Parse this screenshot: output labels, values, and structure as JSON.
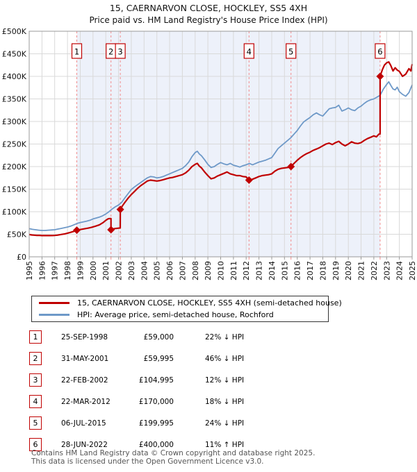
{
  "header": {
    "title": "15, CAERNARVON CLOSE, HOCKLEY, SS5 4XH",
    "subtitle": "Price paid vs. HM Land Registry's House Price Index (HPI)"
  },
  "colors": {
    "property_line": "#c00000",
    "hpi_line": "#6e99c8",
    "sale_dashed_line": "#f28b8b",
    "ownership_band": "#edf1fa",
    "grid": "#d9d9d9",
    "axis_border": "#999999"
  },
  "chart_data": {
    "type": "line",
    "title": "15, CAERNARVON CLOSE, HOCKLEY, SS5 4XH — Price paid vs. HM Land Registry's House Price Index (HPI)",
    "xlabel": "",
    "ylabel": "",
    "x_range": [
      1995,
      2025
    ],
    "ylim": [
      0,
      500000
    ],
    "grid": true,
    "legend_position": "below",
    "x_ticks": [
      1995,
      1996,
      1997,
      1998,
      1999,
      2000,
      2001,
      2002,
      2003,
      2004,
      2005,
      2006,
      2007,
      2008,
      2009,
      2010,
      2011,
      2012,
      2013,
      2014,
      2015,
      2016,
      2017,
      2018,
      2019,
      2020,
      2021,
      2022,
      2023,
      2024,
      2025
    ],
    "y_ticks": [
      {
        "value": 0,
        "label": "£0"
      },
      {
        "value": 50,
        "label": "£50K"
      },
      {
        "value": 100,
        "label": "£100K"
      },
      {
        "value": 150,
        "label": "£150K"
      },
      {
        "value": 200,
        "label": "£200K"
      },
      {
        "value": 250,
        "label": "£250K"
      },
      {
        "value": 300,
        "label": "£300K"
      },
      {
        "value": 350,
        "label": "£350K"
      },
      {
        "value": 400,
        "label": "£400K"
      },
      {
        "value": 450,
        "label": "£450K"
      },
      {
        "value": 500,
        "label": "£500K"
      }
    ],
    "ownership_band": {
      "from_year": 1998.73,
      "to_year": 2022.49
    },
    "series": [
      {
        "name": "15, CAERNARVON CLOSE, HOCKLEY, SS5 4XH (semi-detached house)",
        "color": "#c00000",
        "width": 2.2,
        "points_unit": "£K",
        "points": [
          [
            1995.0,
            49.5
          ],
          [
            1995.2,
            48.5
          ],
          [
            1995.4,
            48
          ],
          [
            1995.6,
            47.5
          ],
          [
            1995.8,
            47.5
          ],
          [
            1996.0,
            47
          ],
          [
            1996.3,
            47
          ],
          [
            1996.6,
            47
          ],
          [
            1996.9,
            47.2
          ],
          [
            1997.2,
            48
          ],
          [
            1997.5,
            49.5
          ],
          [
            1997.8,
            51
          ],
          [
            1998.0,
            52.5
          ],
          [
            1998.2,
            54
          ],
          [
            1998.5,
            56.5
          ],
          [
            1998.73,
            59
          ],
          [
            1999.0,
            60.5
          ],
          [
            1999.3,
            62
          ],
          [
            1999.6,
            63.5
          ],
          [
            1999.9,
            65.5
          ],
          [
            2000.2,
            68
          ],
          [
            2000.5,
            71
          ],
          [
            2000.8,
            76
          ],
          [
            2001.0,
            81
          ],
          [
            2001.2,
            84.5
          ],
          [
            2001.35,
            85
          ],
          [
            2001.41,
            85
          ],
          [
            2001.41,
            60
          ],
          [
            2001.6,
            62
          ],
          [
            2001.8,
            63
          ],
          [
            2002.0,
            63.5
          ],
          [
            2002.13,
            64
          ],
          [
            2002.14,
            105
          ],
          [
            2002.3,
            113
          ],
          [
            2002.5,
            121
          ],
          [
            2002.75,
            130
          ],
          [
            2003.0,
            138
          ],
          [
            2003.25,
            145
          ],
          [
            2003.5,
            152
          ],
          [
            2003.75,
            158
          ],
          [
            2004.0,
            163
          ],
          [
            2004.25,
            168
          ],
          [
            2004.5,
            170
          ],
          [
            2004.75,
            169
          ],
          [
            2005.0,
            168
          ],
          [
            2005.25,
            169
          ],
          [
            2005.5,
            171
          ],
          [
            2005.75,
            173
          ],
          [
            2006.0,
            175
          ],
          [
            2006.25,
            176
          ],
          [
            2006.5,
            178
          ],
          [
            2006.75,
            180
          ],
          [
            2007.0,
            182
          ],
          [
            2007.25,
            186
          ],
          [
            2007.5,
            192
          ],
          [
            2007.75,
            200
          ],
          [
            2008.0,
            205
          ],
          [
            2008.17,
            207
          ],
          [
            2008.33,
            201
          ],
          [
            2008.5,
            197
          ],
          [
            2008.75,
            188
          ],
          [
            2009.0,
            180
          ],
          [
            2009.25,
            173
          ],
          [
            2009.5,
            175
          ],
          [
            2009.75,
            179
          ],
          [
            2010.0,
            182
          ],
          [
            2010.25,
            185
          ],
          [
            2010.5,
            188
          ],
          [
            2010.75,
            184
          ],
          [
            2011.0,
            182
          ],
          [
            2011.25,
            180
          ],
          [
            2011.5,
            180
          ],
          [
            2011.75,
            178
          ],
          [
            2012.0,
            177
          ],
          [
            2012.22,
            170
          ],
          [
            2012.5,
            172
          ],
          [
            2012.75,
            175
          ],
          [
            2013.0,
            178
          ],
          [
            2013.25,
            180
          ],
          [
            2013.5,
            181
          ],
          [
            2013.75,
            182
          ],
          [
            2014.0,
            184
          ],
          [
            2014.25,
            190
          ],
          [
            2014.5,
            194
          ],
          [
            2014.75,
            196
          ],
          [
            2015.0,
            197
          ],
          [
            2015.25,
            198
          ],
          [
            2015.51,
            200
          ],
          [
            2015.75,
            207
          ],
          [
            2016.0,
            214
          ],
          [
            2016.25,
            220
          ],
          [
            2016.5,
            225
          ],
          [
            2016.75,
            229
          ],
          [
            2017.0,
            232
          ],
          [
            2017.25,
            236
          ],
          [
            2017.5,
            239
          ],
          [
            2017.75,
            242
          ],
          [
            2018.0,
            246
          ],
          [
            2018.25,
            250
          ],
          [
            2018.5,
            252
          ],
          [
            2018.75,
            249
          ],
          [
            2019.0,
            253
          ],
          [
            2019.25,
            256
          ],
          [
            2019.5,
            250
          ],
          [
            2019.75,
            246
          ],
          [
            2020.0,
            250
          ],
          [
            2020.25,
            255
          ],
          [
            2020.5,
            252
          ],
          [
            2020.75,
            251
          ],
          [
            2021.0,
            253
          ],
          [
            2021.25,
            258
          ],
          [
            2021.5,
            262
          ],
          [
            2021.75,
            265
          ],
          [
            2022.0,
            268
          ],
          [
            2022.2,
            266
          ],
          [
            2022.4,
            272
          ],
          [
            2022.49,
            272
          ],
          [
            2022.49,
            400
          ],
          [
            2022.67,
            415
          ],
          [
            2022.83,
            425
          ],
          [
            2023.0,
            430
          ],
          [
            2023.17,
            432
          ],
          [
            2023.33,
            424
          ],
          [
            2023.5,
            412
          ],
          [
            2023.67,
            419
          ],
          [
            2023.83,
            414
          ],
          [
            2024.0,
            411
          ],
          [
            2024.25,
            400
          ],
          [
            2024.5,
            405
          ],
          [
            2024.75,
            417
          ],
          [
            2024.9,
            412
          ],
          [
            2025.0,
            427
          ]
        ]
      },
      {
        "name": "HPI: Average price, semi-detached house, Rochford",
        "color": "#6e99c8",
        "width": 1.8,
        "points_unit": "£K",
        "points": [
          [
            1995.0,
            62.5
          ],
          [
            1995.25,
            61
          ],
          [
            1995.5,
            60
          ],
          [
            1995.75,
            59
          ],
          [
            1996.0,
            58.5
          ],
          [
            1996.25,
            58.5
          ],
          [
            1996.5,
            59
          ],
          [
            1996.75,
            59.5
          ],
          [
            1997.0,
            60
          ],
          [
            1997.25,
            61.5
          ],
          [
            1997.5,
            63
          ],
          [
            1997.75,
            64.5
          ],
          [
            1998.0,
            66
          ],
          [
            1998.25,
            68
          ],
          [
            1998.5,
            71
          ],
          [
            1998.75,
            74
          ],
          [
            1999.0,
            76
          ],
          [
            1999.25,
            77.5
          ],
          [
            1999.5,
            79
          ],
          [
            1999.75,
            81
          ],
          [
            2000.0,
            84
          ],
          [
            2000.25,
            86
          ],
          [
            2000.5,
            88
          ],
          [
            2000.75,
            91
          ],
          [
            2001.0,
            95
          ],
          [
            2001.25,
            100
          ],
          [
            2001.5,
            106
          ],
          [
            2001.75,
            111
          ],
          [
            2002.0,
            115
          ],
          [
            2002.25,
            121
          ],
          [
            2002.5,
            131
          ],
          [
            2002.75,
            140
          ],
          [
            2003.0,
            149
          ],
          [
            2003.25,
            155
          ],
          [
            2003.5,
            160
          ],
          [
            2003.75,
            165
          ],
          [
            2004.0,
            170
          ],
          [
            2004.25,
            175
          ],
          [
            2004.5,
            178
          ],
          [
            2004.75,
            177
          ],
          [
            2005.0,
            175
          ],
          [
            2005.25,
            176
          ],
          [
            2005.5,
            178
          ],
          [
            2005.75,
            181
          ],
          [
            2006.0,
            184
          ],
          [
            2006.25,
            187
          ],
          [
            2006.5,
            190
          ],
          [
            2006.75,
            193
          ],
          [
            2007.0,
            196
          ],
          [
            2007.25,
            202
          ],
          [
            2007.5,
            210
          ],
          [
            2007.75,
            222
          ],
          [
            2008.0,
            231
          ],
          [
            2008.17,
            234
          ],
          [
            2008.33,
            228
          ],
          [
            2008.5,
            224
          ],
          [
            2008.75,
            215
          ],
          [
            2009.0,
            205
          ],
          [
            2009.25,
            198
          ],
          [
            2009.5,
            200
          ],
          [
            2009.75,
            205
          ],
          [
            2010.0,
            209
          ],
          [
            2010.25,
            206
          ],
          [
            2010.5,
            204
          ],
          [
            2010.75,
            207
          ],
          [
            2011.0,
            203
          ],
          [
            2011.25,
            201
          ],
          [
            2011.5,
            199
          ],
          [
            2011.75,
            202
          ],
          [
            2012.0,
            204
          ],
          [
            2012.25,
            207
          ],
          [
            2012.5,
            204
          ],
          [
            2012.75,
            207
          ],
          [
            2013.0,
            210
          ],
          [
            2013.25,
            212
          ],
          [
            2013.5,
            214
          ],
          [
            2013.75,
            217
          ],
          [
            2014.0,
            220
          ],
          [
            2014.25,
            230
          ],
          [
            2014.5,
            240
          ],
          [
            2014.75,
            246
          ],
          [
            2015.0,
            252
          ],
          [
            2015.25,
            258
          ],
          [
            2015.5,
            264
          ],
          [
            2015.75,
            272
          ],
          [
            2016.0,
            280
          ],
          [
            2016.25,
            290
          ],
          [
            2016.5,
            299
          ],
          [
            2016.75,
            304
          ],
          [
            2017.0,
            309
          ],
          [
            2017.25,
            315
          ],
          [
            2017.5,
            319
          ],
          [
            2017.75,
            315
          ],
          [
            2018.0,
            312
          ],
          [
            2018.25,
            320
          ],
          [
            2018.5,
            328
          ],
          [
            2018.75,
            330
          ],
          [
            2019.0,
            331
          ],
          [
            2019.25,
            336
          ],
          [
            2019.5,
            323
          ],
          [
            2019.75,
            326
          ],
          [
            2020.0,
            330
          ],
          [
            2020.25,
            326
          ],
          [
            2020.5,
            324
          ],
          [
            2020.75,
            330
          ],
          [
            2021.0,
            334
          ],
          [
            2021.25,
            340
          ],
          [
            2021.5,
            345
          ],
          [
            2021.75,
            348
          ],
          [
            2022.0,
            350
          ],
          [
            2022.25,
            354
          ],
          [
            2022.49,
            358
          ],
          [
            2022.75,
            372
          ],
          [
            2023.0,
            382
          ],
          [
            2023.17,
            388
          ],
          [
            2023.33,
            380
          ],
          [
            2023.5,
            372
          ],
          [
            2023.67,
            370
          ],
          [
            2023.83,
            376
          ],
          [
            2024.0,
            366
          ],
          [
            2024.25,
            360
          ],
          [
            2024.5,
            356
          ],
          [
            2024.75,
            364
          ],
          [
            2025.0,
            381
          ]
        ]
      }
    ]
  },
  "sales": [
    {
      "num": "1",
      "date": "25-SEP-1998",
      "price": "£59,000",
      "vs_hpi": "22% ↓ HPI",
      "year": 1998.73,
      "value": 59
    },
    {
      "num": "2",
      "date": "31-MAY-2001",
      "price": "£59,995",
      "vs_hpi": "46% ↓ HPI",
      "year": 2001.41,
      "value": 60
    },
    {
      "num": "3",
      "date": "22-FEB-2002",
      "price": "£104,995",
      "vs_hpi": "12% ↓ HPI",
      "year": 2002.14,
      "value": 105
    },
    {
      "num": "4",
      "date": "22-MAR-2012",
      "price": "£170,000",
      "vs_hpi": "18% ↓ HPI",
      "year": 2012.22,
      "value": 170
    },
    {
      "num": "5",
      "date": "06-JUL-2015",
      "price": "£199,995",
      "vs_hpi": "24% ↓ HPI",
      "year": 2015.51,
      "value": 200
    },
    {
      "num": "6",
      "date": "28-JUN-2022",
      "price": "£400,000",
      "vs_hpi": "11% ↑ HPI",
      "year": 2022.49,
      "value": 400
    }
  ],
  "footer": {
    "line1": "Contains HM Land Registry data © Crown copyright and database right 2025.",
    "line2": "This data is licensed under the Open Government Licence v3.0."
  }
}
